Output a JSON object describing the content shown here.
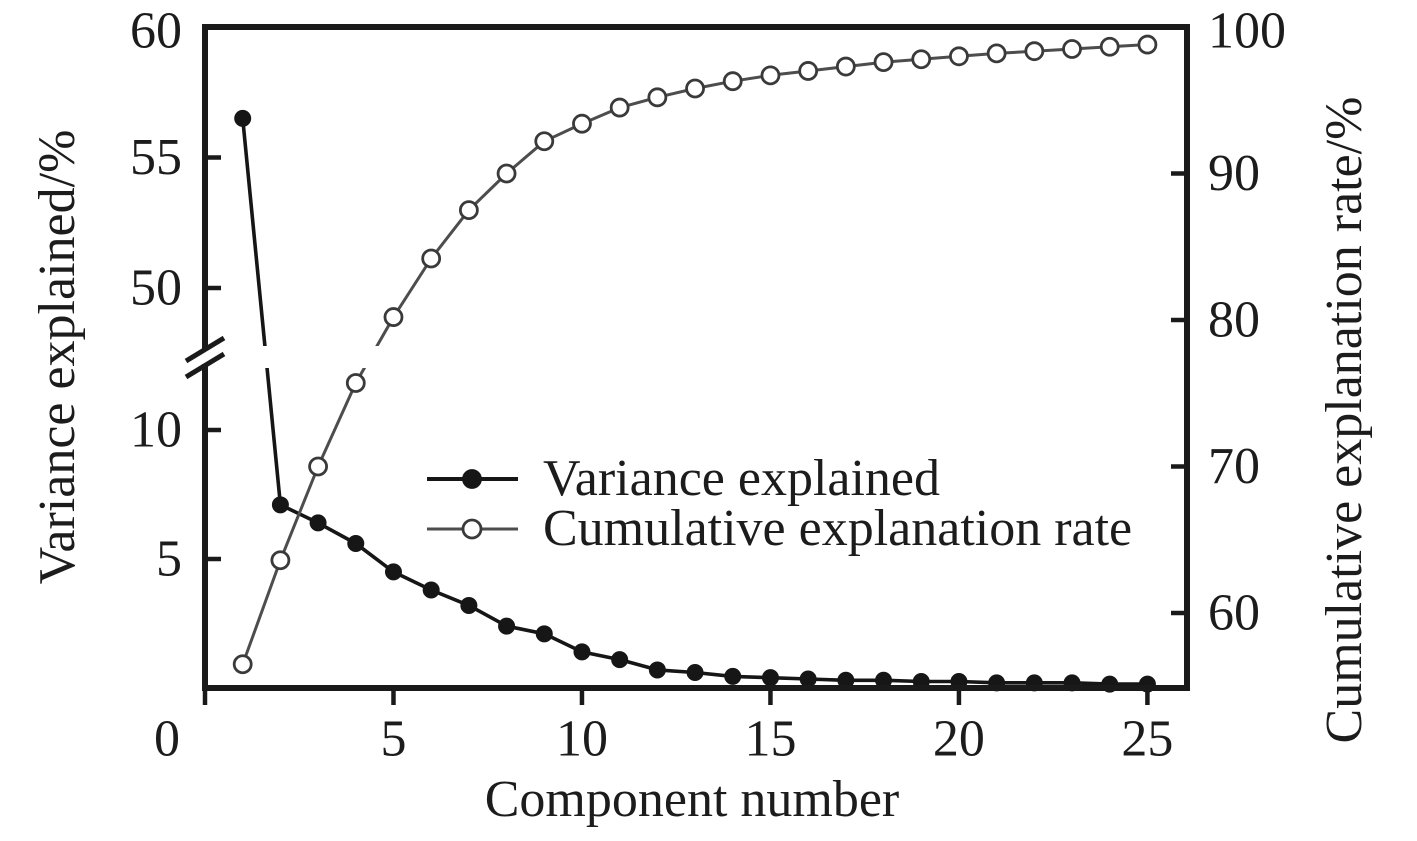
{
  "chart_data": {
    "type": "line",
    "title": "",
    "xlabel": "Component number",
    "ylabel_left": "Variance explained/%",
    "ylabel_right": "Cumulative explanation rate/%",
    "grid": false,
    "x": [
      1,
      2,
      3,
      4,
      5,
      6,
      7,
      8,
      9,
      10,
      11,
      12,
      13,
      14,
      15,
      16,
      17,
      18,
      19,
      20,
      21,
      22,
      23,
      24,
      25
    ],
    "series": [
      {
        "name": "Variance explained",
        "axis": "left",
        "marker": "filled-circle",
        "line_color": "#161616",
        "marker_fill": "#161616",
        "marker_stroke": "#161616",
        "values": [
          56.5,
          7.1,
          6.4,
          5.6,
          4.5,
          3.8,
          3.2,
          2.4,
          2.1,
          1.4,
          1.1,
          0.7,
          0.6,
          0.45,
          0.4,
          0.35,
          0.3,
          0.3,
          0.25,
          0.25,
          0.2,
          0.2,
          0.2,
          0.15,
          0.15
        ]
      },
      {
        "name": "Cumulative explanation rate",
        "axis": "right",
        "marker": "open-circle",
        "line_color": "#4d4d4d",
        "marker_fill": "#ffffff",
        "marker_stroke": "#3a3a3a",
        "values": [
          56.5,
          63.6,
          70.0,
          75.7,
          80.2,
          84.2,
          87.5,
          90.0,
          92.2,
          93.4,
          94.5,
          95.2,
          95.8,
          96.3,
          96.7,
          97.0,
          97.3,
          97.6,
          97.8,
          98.0,
          98.2,
          98.35,
          98.5,
          98.65,
          98.8
        ]
      }
    ],
    "x_ticks": [
      0,
      5,
      10,
      15,
      20,
      25
    ],
    "left_axis": {
      "ticks_lower": [
        5,
        10
      ],
      "ticks_upper": [
        50,
        55,
        60
      ],
      "range_lower": [
        0,
        12.3
      ],
      "range_upper": [
        47.7,
        60
      ],
      "has_break": true
    },
    "right_axis": {
      "ticks": [
        60,
        70,
        80,
        90,
        100
      ],
      "range": [
        54.9,
        100
      ]
    },
    "legend": {
      "position": "center-inside",
      "entries": [
        "Variance explained",
        "Cumulative explanation rate"
      ]
    },
    "axis_color": "#1a1a1a"
  }
}
